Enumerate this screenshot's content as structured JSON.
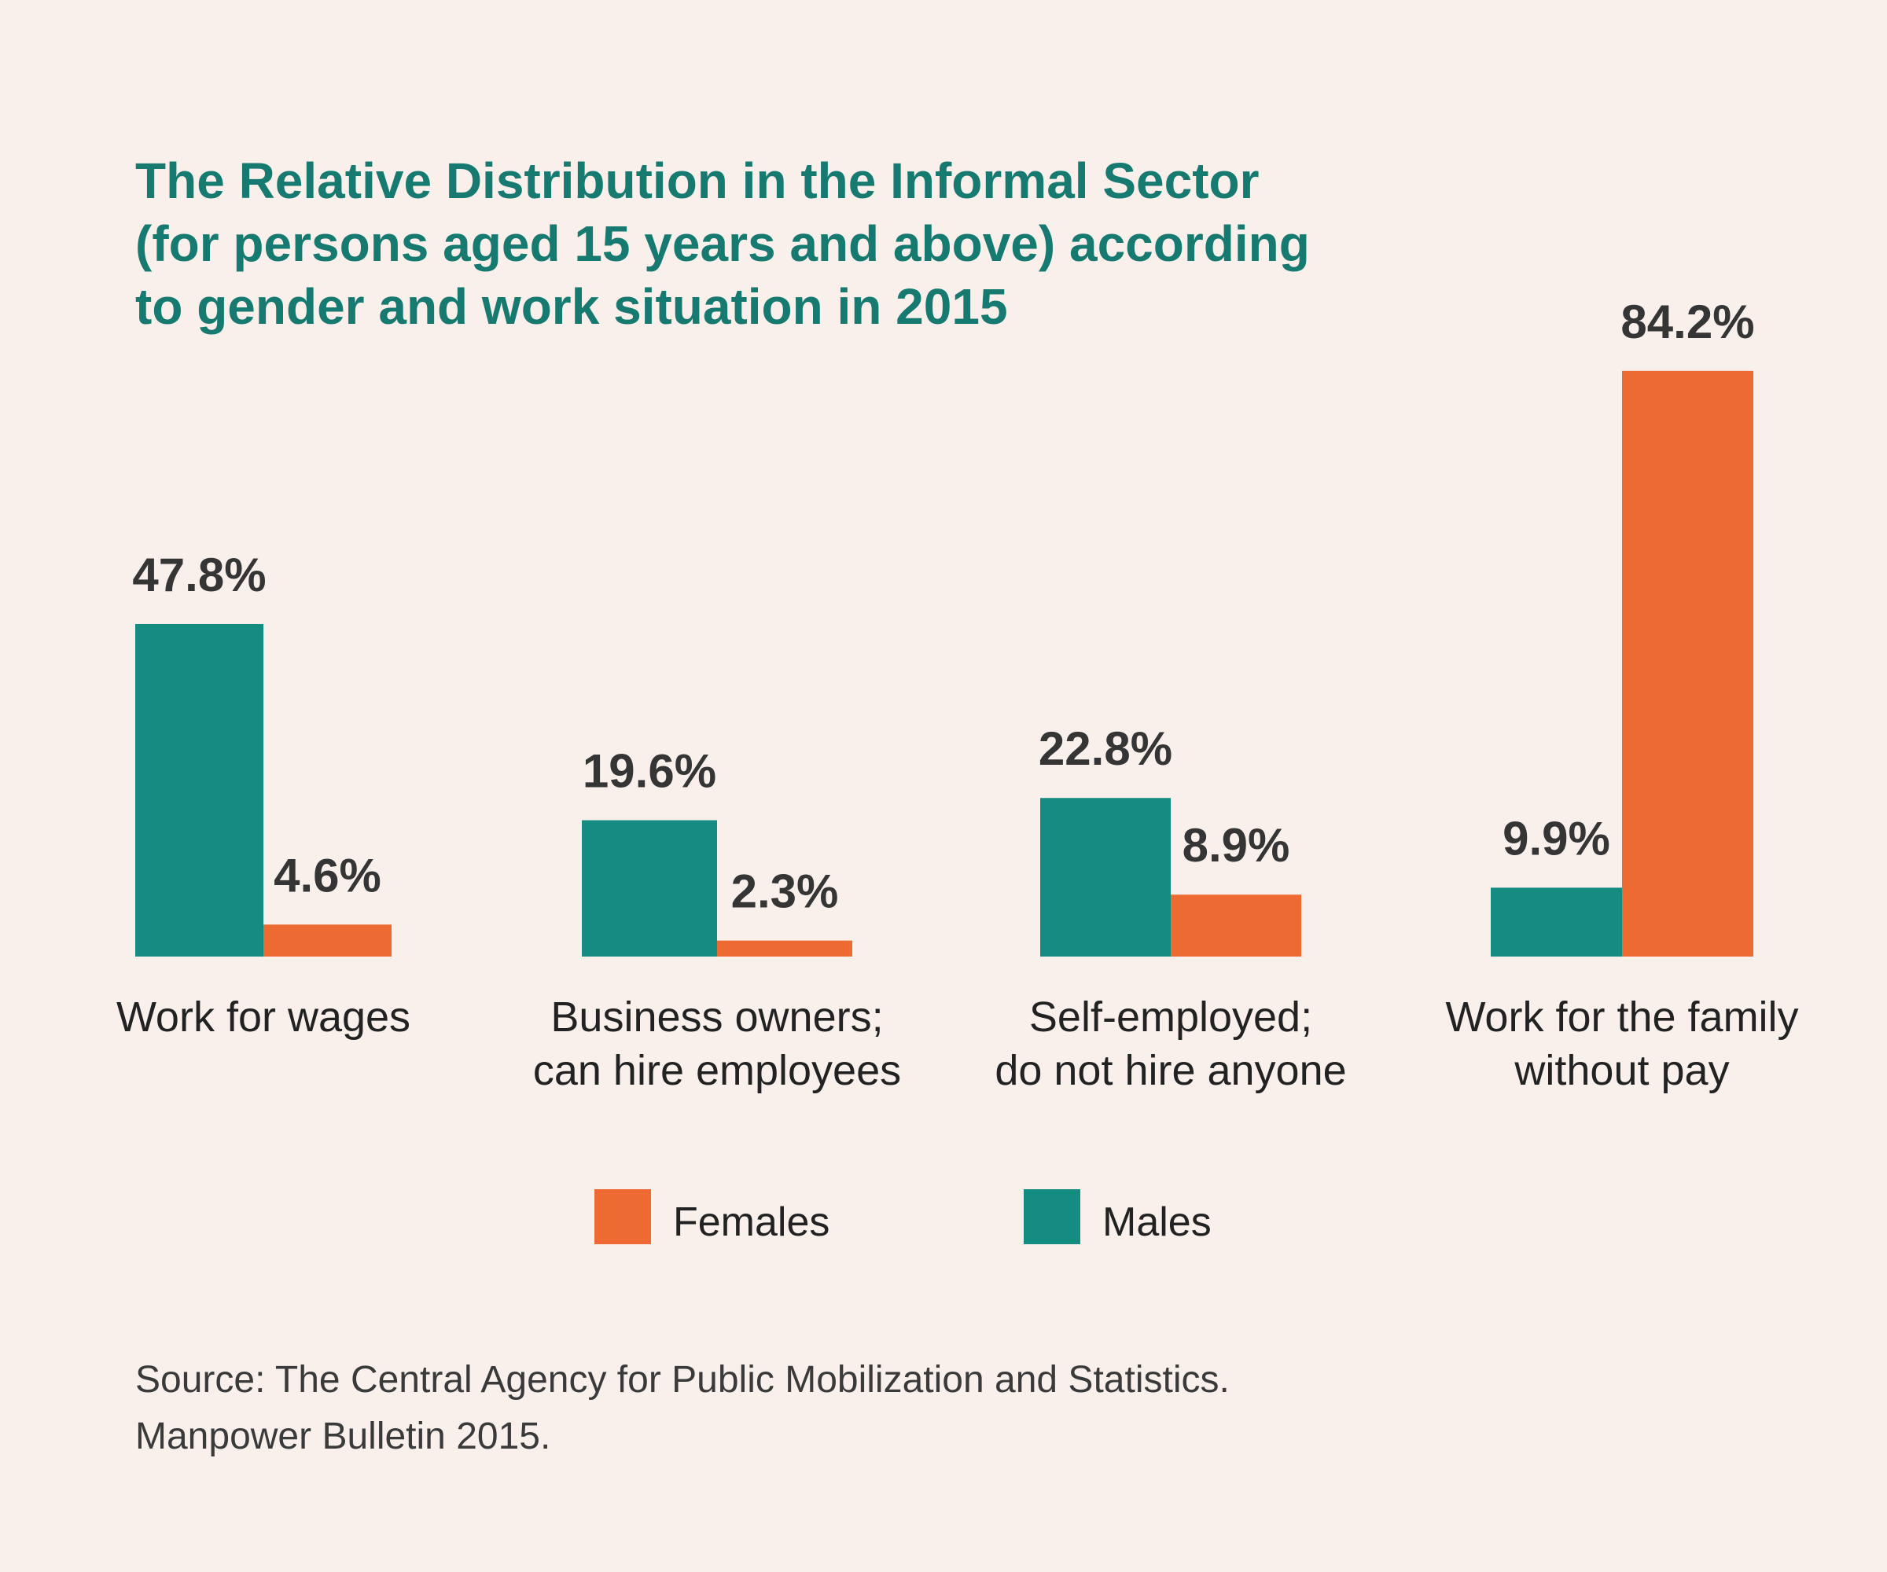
{
  "title_lines": [
    "The Relative Distribution in the Informal Sector",
    "(for persons aged 15 years and above) according",
    "to gender and work situation in 2015"
  ],
  "colors": {
    "males": "#158c82",
    "females": "#ee6a33",
    "title": "#167a70",
    "background": "#f9f0ec",
    "value_text": "#353535"
  },
  "chart_data": {
    "type": "bar",
    "title": "The Relative Distribution in the Informal Sector (for persons aged 15 years and above) according to gender and work situation in 2015",
    "categories": [
      [
        "Work for wages"
      ],
      [
        "Business owners;",
        "can hire employees"
      ],
      [
        "Self-employed;",
        "do not hire anyone"
      ],
      [
        "Work for the family",
        "without pay"
      ]
    ],
    "series": [
      {
        "name": "Males",
        "color": "#158c82",
        "values": [
          47.8,
          19.6,
          22.8,
          9.9
        ],
        "labels": [
          "47.8%",
          "19.6%",
          "22.8%",
          "9.9%"
        ]
      },
      {
        "name": "Females",
        "color": "#ee6a33",
        "values": [
          4.6,
          2.3,
          8.9,
          84.2
        ],
        "labels": [
          "4.6%",
          "2.3%",
          "8.9%",
          "84.2%"
        ]
      }
    ],
    "xlabel": "",
    "ylabel": "",
    "ylim": [
      0,
      100
    ],
    "grid": false,
    "legend": {
      "placement": "bottom-center",
      "entries": [
        "Females",
        "Males"
      ]
    }
  },
  "source": {
    "line1": "Source: The Central Agency for Public Mobilization and Statistics.",
    "line2": "Manpower Bulletin 2015."
  }
}
